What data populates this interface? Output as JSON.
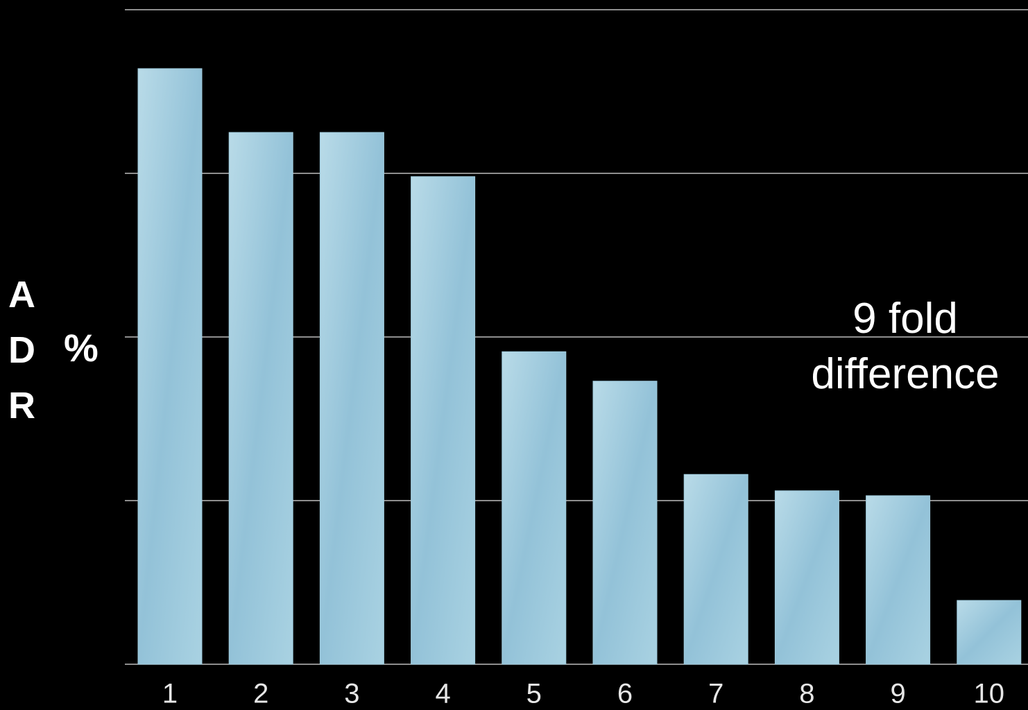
{
  "chart_data": {
    "type": "bar",
    "ylabel": "ADR",
    "ylabel_unit": "%",
    "annotation": "9 fold difference",
    "categories": [
      "1",
      "2",
      "3",
      "4",
      "5",
      "6",
      "7",
      "8",
      "9",
      "10"
    ],
    "values": [
      3.64,
      3.25,
      3.25,
      2.98,
      1.91,
      1.73,
      1.16,
      1.06,
      1.03,
      0.39
    ],
    "color": "#9fcbdd",
    "ylim": [
      0,
      4
    ],
    "yticks": [
      0,
      1,
      2,
      3,
      4
    ],
    "grid": true
  }
}
